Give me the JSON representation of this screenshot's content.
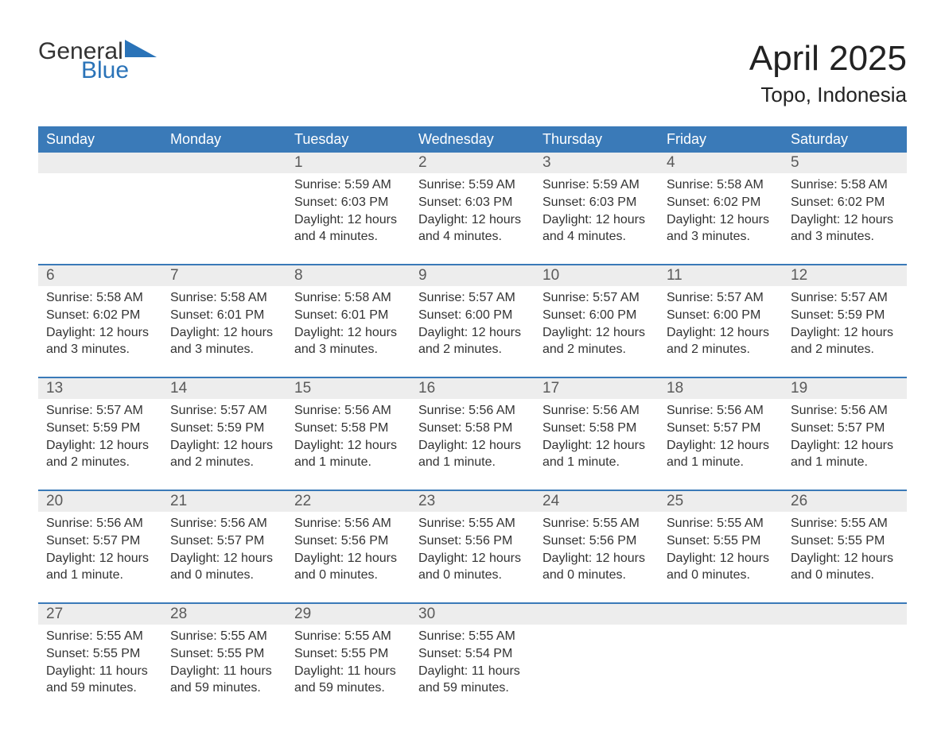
{
  "logo": {
    "word1": "General",
    "word2": "Blue"
  },
  "title": "April 2025",
  "location": "Topo, Indonesia",
  "colors": {
    "header_bg": "#3a7ab8",
    "header_text": "#ffffff",
    "daynum_bg": "#ededed",
    "week_border": "#3a7ab8",
    "body_text": "#333333",
    "daynum_text": "#5a5a5a",
    "logo_blue": "#2a73b8",
    "logo_gray": "#333333",
    "page_bg": "#ffffff"
  },
  "weekdays": [
    "Sunday",
    "Monday",
    "Tuesday",
    "Wednesday",
    "Thursday",
    "Friday",
    "Saturday"
  ],
  "weeks": [
    {
      "days": [
        {
          "n": "",
          "sunrise": "",
          "sunset": "",
          "daylight": ""
        },
        {
          "n": "",
          "sunrise": "",
          "sunset": "",
          "daylight": ""
        },
        {
          "n": "1",
          "sunrise": "Sunrise: 5:59 AM",
          "sunset": "Sunset: 6:03 PM",
          "daylight": "Daylight: 12 hours and 4 minutes."
        },
        {
          "n": "2",
          "sunrise": "Sunrise: 5:59 AM",
          "sunset": "Sunset: 6:03 PM",
          "daylight": "Daylight: 12 hours and 4 minutes."
        },
        {
          "n": "3",
          "sunrise": "Sunrise: 5:59 AM",
          "sunset": "Sunset: 6:03 PM",
          "daylight": "Daylight: 12 hours and 4 minutes."
        },
        {
          "n": "4",
          "sunrise": "Sunrise: 5:58 AM",
          "sunset": "Sunset: 6:02 PM",
          "daylight": "Daylight: 12 hours and 3 minutes."
        },
        {
          "n": "5",
          "sunrise": "Sunrise: 5:58 AM",
          "sunset": "Sunset: 6:02 PM",
          "daylight": "Daylight: 12 hours and 3 minutes."
        }
      ]
    },
    {
      "days": [
        {
          "n": "6",
          "sunrise": "Sunrise: 5:58 AM",
          "sunset": "Sunset: 6:02 PM",
          "daylight": "Daylight: 12 hours and 3 minutes."
        },
        {
          "n": "7",
          "sunrise": "Sunrise: 5:58 AM",
          "sunset": "Sunset: 6:01 PM",
          "daylight": "Daylight: 12 hours and 3 minutes."
        },
        {
          "n": "8",
          "sunrise": "Sunrise: 5:58 AM",
          "sunset": "Sunset: 6:01 PM",
          "daylight": "Daylight: 12 hours and 3 minutes."
        },
        {
          "n": "9",
          "sunrise": "Sunrise: 5:57 AM",
          "sunset": "Sunset: 6:00 PM",
          "daylight": "Daylight: 12 hours and 2 minutes."
        },
        {
          "n": "10",
          "sunrise": "Sunrise: 5:57 AM",
          "sunset": "Sunset: 6:00 PM",
          "daylight": "Daylight: 12 hours and 2 minutes."
        },
        {
          "n": "11",
          "sunrise": "Sunrise: 5:57 AM",
          "sunset": "Sunset: 6:00 PM",
          "daylight": "Daylight: 12 hours and 2 minutes."
        },
        {
          "n": "12",
          "sunrise": "Sunrise: 5:57 AM",
          "sunset": "Sunset: 5:59 PM",
          "daylight": "Daylight: 12 hours and 2 minutes."
        }
      ]
    },
    {
      "days": [
        {
          "n": "13",
          "sunrise": "Sunrise: 5:57 AM",
          "sunset": "Sunset: 5:59 PM",
          "daylight": "Daylight: 12 hours and 2 minutes."
        },
        {
          "n": "14",
          "sunrise": "Sunrise: 5:57 AM",
          "sunset": "Sunset: 5:59 PM",
          "daylight": "Daylight: 12 hours and 2 minutes."
        },
        {
          "n": "15",
          "sunrise": "Sunrise: 5:56 AM",
          "sunset": "Sunset: 5:58 PM",
          "daylight": "Daylight: 12 hours and 1 minute."
        },
        {
          "n": "16",
          "sunrise": "Sunrise: 5:56 AM",
          "sunset": "Sunset: 5:58 PM",
          "daylight": "Daylight: 12 hours and 1 minute."
        },
        {
          "n": "17",
          "sunrise": "Sunrise: 5:56 AM",
          "sunset": "Sunset: 5:58 PM",
          "daylight": "Daylight: 12 hours and 1 minute."
        },
        {
          "n": "18",
          "sunrise": "Sunrise: 5:56 AM",
          "sunset": "Sunset: 5:57 PM",
          "daylight": "Daylight: 12 hours and 1 minute."
        },
        {
          "n": "19",
          "sunrise": "Sunrise: 5:56 AM",
          "sunset": "Sunset: 5:57 PM",
          "daylight": "Daylight: 12 hours and 1 minute."
        }
      ]
    },
    {
      "days": [
        {
          "n": "20",
          "sunrise": "Sunrise: 5:56 AM",
          "sunset": "Sunset: 5:57 PM",
          "daylight": "Daylight: 12 hours and 1 minute."
        },
        {
          "n": "21",
          "sunrise": "Sunrise: 5:56 AM",
          "sunset": "Sunset: 5:57 PM",
          "daylight": "Daylight: 12 hours and 0 minutes."
        },
        {
          "n": "22",
          "sunrise": "Sunrise: 5:56 AM",
          "sunset": "Sunset: 5:56 PM",
          "daylight": "Daylight: 12 hours and 0 minutes."
        },
        {
          "n": "23",
          "sunrise": "Sunrise: 5:55 AM",
          "sunset": "Sunset: 5:56 PM",
          "daylight": "Daylight: 12 hours and 0 minutes."
        },
        {
          "n": "24",
          "sunrise": "Sunrise: 5:55 AM",
          "sunset": "Sunset: 5:56 PM",
          "daylight": "Daylight: 12 hours and 0 minutes."
        },
        {
          "n": "25",
          "sunrise": "Sunrise: 5:55 AM",
          "sunset": "Sunset: 5:55 PM",
          "daylight": "Daylight: 12 hours and 0 minutes."
        },
        {
          "n": "26",
          "sunrise": "Sunrise: 5:55 AM",
          "sunset": "Sunset: 5:55 PM",
          "daylight": "Daylight: 12 hours and 0 minutes."
        }
      ]
    },
    {
      "days": [
        {
          "n": "27",
          "sunrise": "Sunrise: 5:55 AM",
          "sunset": "Sunset: 5:55 PM",
          "daylight": "Daylight: 11 hours and 59 minutes."
        },
        {
          "n": "28",
          "sunrise": "Sunrise: 5:55 AM",
          "sunset": "Sunset: 5:55 PM",
          "daylight": "Daylight: 11 hours and 59 minutes."
        },
        {
          "n": "29",
          "sunrise": "Sunrise: 5:55 AM",
          "sunset": "Sunset: 5:55 PM",
          "daylight": "Daylight: 11 hours and 59 minutes."
        },
        {
          "n": "30",
          "sunrise": "Sunrise: 5:55 AM",
          "sunset": "Sunset: 5:54 PM",
          "daylight": "Daylight: 11 hours and 59 minutes."
        },
        {
          "n": "",
          "sunrise": "",
          "sunset": "",
          "daylight": ""
        },
        {
          "n": "",
          "sunrise": "",
          "sunset": "",
          "daylight": ""
        },
        {
          "n": "",
          "sunrise": "",
          "sunset": "",
          "daylight": ""
        }
      ]
    }
  ]
}
